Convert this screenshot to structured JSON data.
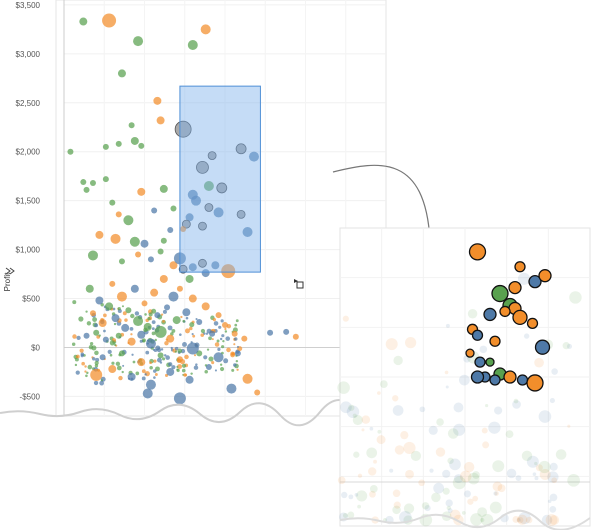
{
  "chart_data": [
    {
      "type": "scatter",
      "panel": "main",
      "ylabel": "Profit",
      "ylim": [
        -700,
        3550
      ],
      "yticks": [
        -500,
        0,
        500,
        1000,
        1500,
        2000,
        2500,
        3000,
        3500
      ],
      "ytick_labels": [
        "-$500",
        "$0",
        "$500",
        "$1,000",
        "$1,500",
        "$2,000",
        "$2,500",
        "$3,000",
        "$3,500"
      ],
      "grid": true,
      "legend": "none",
      "colors": {
        "green": "#59a14f",
        "orange": "#f28e2b",
        "blue": "#4e79a7",
        "gray": "#9a9a9a"
      },
      "selection": {
        "x_range": [
          0.36,
          0.61
        ],
        "y_range": [
          770,
          2670
        ]
      },
      "points": [
        {
          "x": 0.06,
          "y": 3330,
          "size": 4,
          "color": "green"
        },
        {
          "x": 0.14,
          "y": 3340,
          "size": 7,
          "color": "orange"
        },
        {
          "x": 0.23,
          "y": 3130,
          "size": 5,
          "color": "green"
        },
        {
          "x": 0.4,
          "y": 3090,
          "size": 5,
          "color": "green"
        },
        {
          "x": 0.44,
          "y": 3250,
          "size": 5,
          "color": "orange"
        },
        {
          "x": 0.18,
          "y": 2800,
          "size": 4,
          "color": "green"
        },
        {
          "x": 0.29,
          "y": 2520,
          "size": 4,
          "color": "orange"
        },
        {
          "x": 0.3,
          "y": 2320,
          "size": 4,
          "color": "orange"
        },
        {
          "x": 0.21,
          "y": 2270,
          "size": 3,
          "color": "green"
        },
        {
          "x": 0.02,
          "y": 2000,
          "size": 3,
          "color": "green"
        },
        {
          "x": 0.13,
          "y": 2050,
          "size": 3,
          "color": "green"
        },
        {
          "x": 0.22,
          "y": 2110,
          "size": 4,
          "color": "green"
        },
        {
          "x": 0.24,
          "y": 2060,
          "size": 3,
          "color": "green"
        },
        {
          "x": 0.17,
          "y": 2080,
          "size": 3,
          "color": "green"
        },
        {
          "x": 0.06,
          "y": 1690,
          "size": 3,
          "color": "green"
        },
        {
          "x": 0.09,
          "y": 1680,
          "size": 3,
          "color": "green"
        },
        {
          "x": 0.07,
          "y": 1610,
          "size": 3,
          "color": "green"
        },
        {
          "x": 0.13,
          "y": 1720,
          "size": 3,
          "color": "green"
        },
        {
          "x": 0.24,
          "y": 1590,
          "size": 4,
          "color": "orange"
        },
        {
          "x": 0.31,
          "y": 1620,
          "size": 4,
          "color": "green"
        },
        {
          "x": 0.15,
          "y": 1480,
          "size": 3,
          "color": "green"
        },
        {
          "x": 0.17,
          "y": 1360,
          "size": 3,
          "color": "orange"
        },
        {
          "x": 0.2,
          "y": 1300,
          "size": 5,
          "color": "green"
        },
        {
          "x": 0.28,
          "y": 1400,
          "size": 3,
          "color": "blue"
        },
        {
          "x": 0.34,
          "y": 1420,
          "size": 3,
          "color": "green"
        },
        {
          "x": 0.11,
          "y": 1150,
          "size": 4,
          "color": "orange"
        },
        {
          "x": 0.16,
          "y": 1110,
          "size": 5,
          "color": "orange"
        },
        {
          "x": 0.22,
          "y": 1080,
          "size": 5,
          "color": "green"
        },
        {
          "x": 0.25,
          "y": 1060,
          "size": 4,
          "color": "blue"
        },
        {
          "x": 0.31,
          "y": 1090,
          "size": 3,
          "color": "green"
        },
        {
          "x": 0.33,
          "y": 1200,
          "size": 3,
          "color": "blue"
        },
        {
          "x": 0.09,
          "y": 940,
          "size": 5,
          "color": "green"
        },
        {
          "x": 0.18,
          "y": 880,
          "size": 3,
          "color": "green"
        },
        {
          "x": 0.23,
          "y": 950,
          "size": 3,
          "color": "orange"
        },
        {
          "x": 0.27,
          "y": 900,
          "size": 3,
          "color": "blue"
        },
        {
          "x": 0.3,
          "y": 980,
          "size": 3,
          "color": "green"
        },
        {
          "x": 0.34,
          "y": 840,
          "size": 4,
          "color": "orange"
        },
        {
          "x": 0.37,
          "y": 2230,
          "size": 8,
          "color": "gray"
        },
        {
          "x": 0.46,
          "y": 1960,
          "size": 4,
          "color": "gray"
        },
        {
          "x": 0.55,
          "y": 2030,
          "size": 5,
          "color": "gray"
        },
        {
          "x": 0.59,
          "y": 1950,
          "size": 5,
          "color": "blue"
        },
        {
          "x": 0.43,
          "y": 1840,
          "size": 6,
          "color": "gray"
        },
        {
          "x": 0.45,
          "y": 1650,
          "size": 5,
          "color": "green"
        },
        {
          "x": 0.4,
          "y": 1560,
          "size": 5,
          "color": "blue"
        },
        {
          "x": 0.49,
          "y": 1630,
          "size": 5,
          "color": "gray"
        },
        {
          "x": 0.41,
          "y": 1500,
          "size": 5,
          "color": "blue"
        },
        {
          "x": 0.45,
          "y": 1430,
          "size": 4,
          "color": "gray"
        },
        {
          "x": 0.48,
          "y": 1380,
          "size": 5,
          "color": "blue"
        },
        {
          "x": 0.39,
          "y": 1330,
          "size": 4,
          "color": "blue"
        },
        {
          "x": 0.55,
          "y": 1360,
          "size": 4,
          "color": "gray"
        },
        {
          "x": 0.38,
          "y": 1260,
          "size": 4,
          "color": "gray"
        },
        {
          "x": 0.43,
          "y": 1240,
          "size": 4,
          "color": "gray"
        },
        {
          "x": 0.57,
          "y": 1180,
          "size": 5,
          "color": "blue"
        },
        {
          "x": 0.37,
          "y": 1210,
          "size": 3,
          "color": "orange"
        },
        {
          "x": 0.36,
          "y": 910,
          "size": 6,
          "color": "blue"
        },
        {
          "x": 0.37,
          "y": 800,
          "size": 4,
          "color": "gray"
        },
        {
          "x": 0.4,
          "y": 820,
          "size": 4,
          "color": "blue"
        },
        {
          "x": 0.43,
          "y": 860,
          "size": 4,
          "color": "gray"
        },
        {
          "x": 0.44,
          "y": 760,
          "size": 4,
          "color": "blue"
        },
        {
          "x": 0.47,
          "y": 840,
          "size": 4,
          "color": "blue"
        },
        {
          "x": 0.51,
          "y": 780,
          "size": 7,
          "color": "orange"
        },
        {
          "x": 0.39,
          "y": 700,
          "size": 4,
          "color": "green"
        },
        {
          "x": 0.07,
          "y": 120,
          "size": 3,
          "color": "blue"
        },
        {
          "x": 0.08,
          "y": 600,
          "size": 4,
          "color": "green"
        },
        {
          "x": 0.09,
          "y": 350,
          "size": 3,
          "color": "orange"
        },
        {
          "x": 0.1,
          "y": 150,
          "size": 3,
          "color": "green"
        },
        {
          "x": 0.11,
          "y": 480,
          "size": 4,
          "color": "blue"
        },
        {
          "x": 0.12,
          "y": 250,
          "size": 4,
          "color": "orange"
        },
        {
          "x": 0.13,
          "y": 80,
          "size": 3,
          "color": "blue"
        },
        {
          "x": 0.14,
          "y": 420,
          "size": 4,
          "color": "green"
        },
        {
          "x": 0.15,
          "y": 650,
          "size": 3,
          "color": "orange"
        },
        {
          "x": 0.16,
          "y": 300,
          "size": 4,
          "color": "blue"
        },
        {
          "x": 0.17,
          "y": 120,
          "size": 3,
          "color": "green"
        },
        {
          "x": 0.18,
          "y": 520,
          "size": 5,
          "color": "orange"
        },
        {
          "x": 0.19,
          "y": 200,
          "size": 4,
          "color": "blue"
        },
        {
          "x": 0.2,
          "y": 380,
          "size": 3,
          "color": "green"
        },
        {
          "x": 0.21,
          "y": 60,
          "size": 4,
          "color": "orange"
        },
        {
          "x": 0.22,
          "y": 600,
          "size": 4,
          "color": "blue"
        },
        {
          "x": 0.23,
          "y": 270,
          "size": 5,
          "color": "green"
        },
        {
          "x": 0.24,
          "y": 130,
          "size": 4,
          "color": "blue"
        },
        {
          "x": 0.25,
          "y": 450,
          "size": 3,
          "color": "orange"
        },
        {
          "x": 0.26,
          "y": 210,
          "size": 4,
          "color": "green"
        },
        {
          "x": 0.27,
          "y": 40,
          "size": 5,
          "color": "blue"
        },
        {
          "x": 0.28,
          "y": 560,
          "size": 4,
          "color": "orange"
        },
        {
          "x": 0.29,
          "y": 330,
          "size": 3,
          "color": "blue"
        },
        {
          "x": 0.3,
          "y": 160,
          "size": 6,
          "color": "green"
        },
        {
          "x": 0.31,
          "y": 700,
          "size": 4,
          "color": "orange"
        },
        {
          "x": 0.32,
          "y": 410,
          "size": 3,
          "color": "blue"
        },
        {
          "x": 0.33,
          "y": 90,
          "size": 4,
          "color": "orange"
        },
        {
          "x": 0.34,
          "y": 520,
          "size": 5,
          "color": "blue"
        },
        {
          "x": 0.35,
          "y": 280,
          "size": 4,
          "color": "green"
        },
        {
          "x": 0.36,
          "y": 600,
          "size": 3,
          "color": "orange"
        },
        {
          "x": 0.38,
          "y": 360,
          "size": 4,
          "color": "blue"
        },
        {
          "x": 0.4,
          "y": 500,
          "size": 4,
          "color": "orange"
        },
        {
          "x": 0.42,
          "y": 260,
          "size": 3,
          "color": "blue"
        },
        {
          "x": 0.44,
          "y": 420,
          "size": 4,
          "color": "orange"
        },
        {
          "x": 0.46,
          "y": 140,
          "size": 3,
          "color": "blue"
        },
        {
          "x": 0.48,
          "y": 330,
          "size": 3,
          "color": "orange"
        },
        {
          "x": 0.12,
          "y": -100,
          "size": 3,
          "color": "blue"
        },
        {
          "x": 0.15,
          "y": -220,
          "size": 4,
          "color": "orange"
        },
        {
          "x": 0.18,
          "y": -60,
          "size": 3,
          "color": "green"
        },
        {
          "x": 0.21,
          "y": -300,
          "size": 4,
          "color": "blue"
        },
        {
          "x": 0.24,
          "y": -150,
          "size": 4,
          "color": "orange"
        },
        {
          "x": 0.27,
          "y": -380,
          "size": 5,
          "color": "blue"
        },
        {
          "x": 0.3,
          "y": -80,
          "size": 3,
          "color": "green"
        },
        {
          "x": 0.33,
          "y": -250,
          "size": 4,
          "color": "blue"
        },
        {
          "x": 0.36,
          "y": -120,
          "size": 3,
          "color": "orange"
        },
        {
          "x": 0.39,
          "y": -330,
          "size": 4,
          "color": "blue"
        },
        {
          "x": 0.42,
          "y": -60,
          "size": 3,
          "color": "green"
        },
        {
          "x": 0.45,
          "y": -200,
          "size": 3,
          "color": "blue"
        },
        {
          "x": 0.1,
          "y": -280,
          "size": 6,
          "color": "orange"
        },
        {
          "x": 0.26,
          "y": -470,
          "size": 5,
          "color": "blue"
        },
        {
          "x": 0.36,
          "y": -520,
          "size": 6,
          "color": "blue"
        },
        {
          "x": 0.4,
          "y": -10,
          "size": 6,
          "color": "blue"
        },
        {
          "x": 0.48,
          "y": -100,
          "size": 5,
          "color": "blue"
        },
        {
          "x": 0.52,
          "y": -420,
          "size": 5,
          "color": "blue"
        },
        {
          "x": 0.57,
          "y": -320,
          "size": 5,
          "color": "orange"
        },
        {
          "x": 0.6,
          "y": -460,
          "size": 3,
          "color": "orange"
        },
        {
          "x": 0.53,
          "y": 140,
          "size": 3,
          "color": "orange"
        },
        {
          "x": 0.56,
          "y": 90,
          "size": 3,
          "color": "orange"
        },
        {
          "x": 0.64,
          "y": 150,
          "size": 3,
          "color": "blue"
        },
        {
          "x": 0.69,
          "y": 160,
          "size": 3,
          "color": "blue"
        },
        {
          "x": 0.72,
          "y": 110,
          "size": 3,
          "color": "orange"
        },
        {
          "x": 0.54,
          "y": -60,
          "size": 3,
          "color": "blue"
        },
        {
          "x": 0.5,
          "y": 230,
          "size": 3,
          "color": "orange"
        }
      ]
    },
    {
      "type": "scatter",
      "panel": "zoomed-detail",
      "grid": true,
      "legend": "none",
      "highlighted_points": [
        {
          "x": 0.55,
          "y": 0.92,
          "size": 8,
          "color": "orange"
        },
        {
          "x": 0.72,
          "y": 0.87,
          "size": 5,
          "color": "orange"
        },
        {
          "x": 0.78,
          "y": 0.82,
          "size": 6,
          "color": "blue"
        },
        {
          "x": 0.82,
          "y": 0.84,
          "size": 6,
          "color": "orange"
        },
        {
          "x": 0.7,
          "y": 0.8,
          "size": 6,
          "color": "orange"
        },
        {
          "x": 0.64,
          "y": 0.78,
          "size": 8,
          "color": "green"
        },
        {
          "x": 0.68,
          "y": 0.74,
          "size": 7,
          "color": "green"
        },
        {
          "x": 0.7,
          "y": 0.73,
          "size": 6,
          "color": "orange"
        },
        {
          "x": 0.66,
          "y": 0.72,
          "size": 5,
          "color": "orange"
        },
        {
          "x": 0.6,
          "y": 0.71,
          "size": 6,
          "color": "blue"
        },
        {
          "x": 0.72,
          "y": 0.7,
          "size": 7,
          "color": "orange"
        },
        {
          "x": 0.77,
          "y": 0.68,
          "size": 5,
          "color": "orange"
        },
        {
          "x": 0.53,
          "y": 0.66,
          "size": 5,
          "color": "orange"
        },
        {
          "x": 0.55,
          "y": 0.64,
          "size": 5,
          "color": "blue"
        },
        {
          "x": 0.62,
          "y": 0.62,
          "size": 5,
          "color": "orange"
        },
        {
          "x": 0.81,
          "y": 0.6,
          "size": 7,
          "color": "blue"
        },
        {
          "x": 0.52,
          "y": 0.58,
          "size": 4,
          "color": "orange"
        },
        {
          "x": 0.56,
          "y": 0.55,
          "size": 5,
          "color": "blue"
        },
        {
          "x": 0.6,
          "y": 0.55,
          "size": 4,
          "color": "green"
        },
        {
          "x": 0.64,
          "y": 0.51,
          "size": 6,
          "color": "green"
        },
        {
          "x": 0.58,
          "y": 0.5,
          "size": 5,
          "color": "blue"
        },
        {
          "x": 0.62,
          "y": 0.49,
          "size": 5,
          "color": "blue"
        },
        {
          "x": 0.55,
          "y": 0.5,
          "size": 6,
          "color": "blue"
        },
        {
          "x": 0.68,
          "y": 0.5,
          "size": 6,
          "color": "orange"
        },
        {
          "x": 0.73,
          "y": 0.49,
          "size": 5,
          "color": "blue"
        },
        {
          "x": 0.78,
          "y": 0.48,
          "size": 8,
          "color": "orange"
        }
      ]
    }
  ]
}
